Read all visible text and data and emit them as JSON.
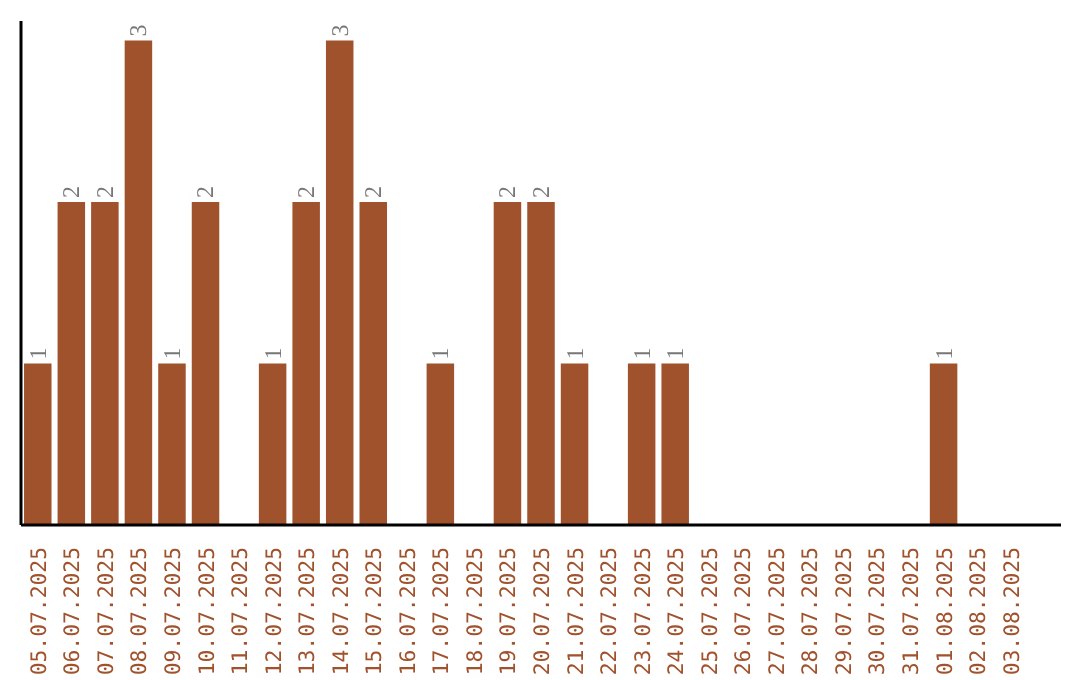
{
  "chart_data": {
    "type": "bar",
    "categories": [
      "05.07.2025",
      "06.07.2025",
      "07.07.2025",
      "08.07.2025",
      "09.07.2025",
      "10.07.2025",
      "11.07.2025",
      "12.07.2025",
      "13.07.2025",
      "14.07.2025",
      "15.07.2025",
      "16.07.2025",
      "17.07.2025",
      "18.07.2025",
      "19.07.2025",
      "20.07.2025",
      "21.07.2025",
      "22.07.2025",
      "23.07.2025",
      "24.07.2025",
      "25.07.2025",
      "26.07.2025",
      "27.07.2025",
      "28.07.2025",
      "29.07.2025",
      "30.07.2025",
      "31.07.2025",
      "01.08.2025",
      "02.08.2025",
      "03.08.2025"
    ],
    "values": [
      1,
      2,
      2,
      3,
      1,
      2,
      0,
      1,
      2,
      3,
      2,
      0,
      1,
      0,
      2,
      2,
      1,
      0,
      1,
      1,
      0,
      0,
      0,
      0,
      0,
      0,
      0,
      1,
      0,
      0
    ],
    "value_labels": [
      "1",
      "2",
      "2",
      "3",
      "1",
      "2",
      null,
      "1",
      "2",
      "3",
      "2",
      null,
      "1",
      null,
      "2",
      "2",
      "1",
      null,
      "1",
      "1",
      null,
      null,
      null,
      null,
      null,
      null,
      null,
      "1",
      null,
      null
    ],
    "color": "#a0522d",
    "grid": false
  }
}
